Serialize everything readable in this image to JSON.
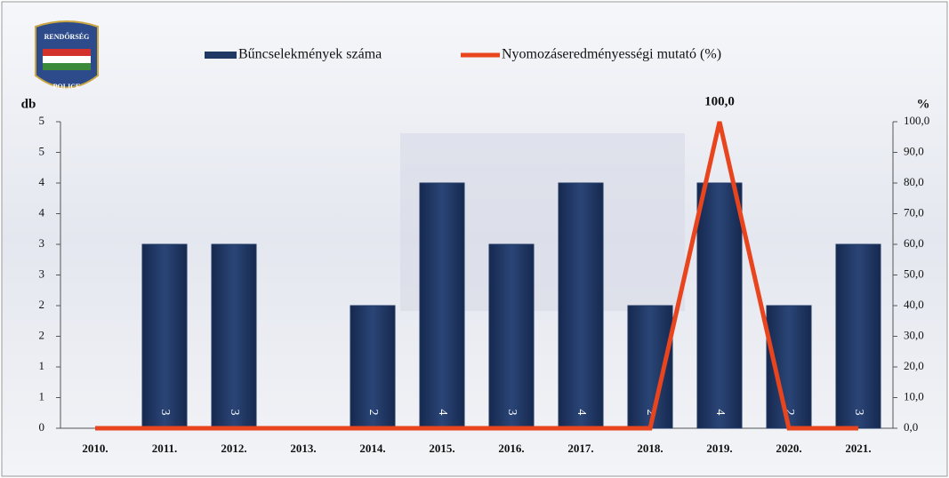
{
  "chart_data": {
    "type": "bar-line",
    "logo": {
      "top": "RENDŐRSÉG",
      "bottom": "POLICE"
    },
    "ylabel": "db",
    "y2label": "%",
    "categories": [
      "2010.",
      "2011.",
      "2012.",
      "2013.",
      "2014.",
      "2015.",
      "2016.",
      "2017.",
      "2018.",
      "2019.",
      "2020.",
      "2021."
    ],
    "series": [
      {
        "name": "Bűncselekmények száma",
        "type": "bar",
        "color": "#1f3864",
        "values": [
          null,
          3,
          3,
          null,
          2,
          4,
          3,
          4,
          2,
          4,
          2,
          3
        ]
      },
      {
        "name": "Nyomozáseredményességi mutató (%)",
        "type": "line",
        "axis": "y2",
        "color": "#e8441e",
        "values": [
          0,
          0,
          0,
          0,
          0,
          0,
          0,
          0,
          0,
          100,
          0,
          0
        ],
        "value_labels": [
          null,
          null,
          null,
          null,
          null,
          null,
          null,
          null,
          null,
          "100,0",
          null,
          null
        ]
      }
    ],
    "ylim": [
      0,
      5
    ],
    "yticks": [
      0,
      {
        "value": 0.5,
        "label": "1"
      },
      1,
      {
        "value": 1.5,
        "label": "2"
      },
      2,
      {
        "value": 2.5,
        "label": "3"
      },
      3,
      {
        "value": 3.5,
        "label": "4"
      },
      4,
      {
        "value": 4.5,
        "label": "5"
      },
      5
    ],
    "y2lim": [
      0,
      100
    ],
    "y2ticks": [
      {
        "value": 0,
        "label": "0,0"
      },
      {
        "value": 10,
        "label": "10,0"
      },
      {
        "value": 20,
        "label": "20,0"
      },
      {
        "value": 30,
        "label": "30,0"
      },
      {
        "value": 40,
        "label": "40,0"
      },
      {
        "value": 50,
        "label": "50,0"
      },
      {
        "value": 60,
        "label": "60,0"
      },
      {
        "value": 70,
        "label": "70,0"
      },
      {
        "value": 80,
        "label": "80,0"
      },
      {
        "value": 90,
        "label": "90,0"
      },
      {
        "value": 100,
        "label": "100,0"
      }
    ]
  }
}
